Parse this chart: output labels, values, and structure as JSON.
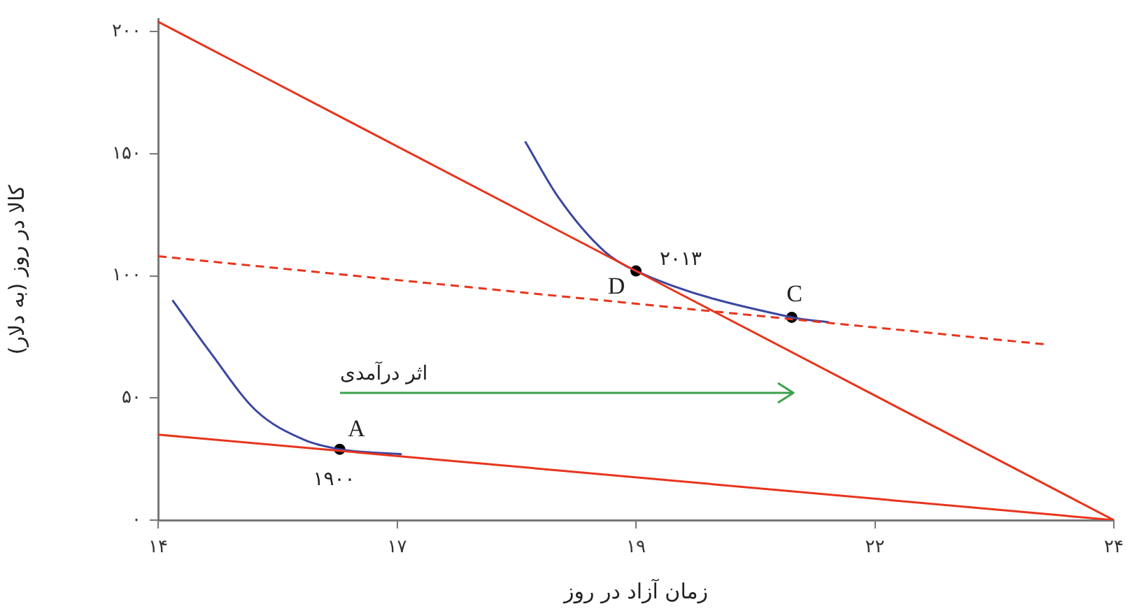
{
  "chart_data": {
    "type": "line",
    "xlabel": "زمان آزاد در روز",
    "ylabel": "کالا در روز (به دلار)",
    "xlim": [
      14,
      24
    ],
    "ylim": [
      0,
      205
    ],
    "xticks": [
      {
        "value": 14,
        "label": "۱۴"
      },
      {
        "value": 16.5,
        "label": "۱۷"
      },
      {
        "value": 19,
        "label": "۱۹"
      },
      {
        "value": 21.5,
        "label": "۲۲"
      },
      {
        "value": 24,
        "label": "۲۴"
      }
    ],
    "yticks": [
      {
        "value": 0,
        "label": "۰"
      },
      {
        "value": 50,
        "label": "۵۰"
      },
      {
        "value": 100,
        "label": "۱۰۰"
      },
      {
        "value": 150,
        "label": "۱۵۰"
      },
      {
        "value": 200,
        "label": "۲۰۰"
      }
    ],
    "grid": false,
    "legend": false,
    "marker": "none",
    "line_style": "solid",
    "series": [
      {
        "color": "#e8341c",
        "x": [
          14,
          24
        ],
        "values": [
          35,
          0
        ]
      },
      {
        "color": "#e8341c",
        "x": [
          14,
          24
        ],
        "values": [
          204,
          0
        ]
      },
      {
        "color": "#e8341c",
        "line_style": "dashed",
        "x": [
          14,
          23.27
        ],
        "values": [
          108,
          72
        ]
      },
      {
        "color": "#3a47a0",
        "x": [
          14.15,
          14.54,
          15.02,
          15.52,
          15.9,
          16.55
        ],
        "values": [
          90,
          69,
          45,
          33,
          29,
          27
        ]
      },
      {
        "color": "#3a47a0",
        "x": [
          17.84,
          18.19,
          18.67,
          19,
          20.63,
          21.02
        ],
        "values": [
          155,
          132,
          110,
          102,
          83,
          81
        ]
      },
      {
        "type": "scatter",
        "color": "#000000",
        "marker": "circle",
        "x": [
          15.9,
          19,
          20.63
        ],
        "values": [
          29,
          102,
          83
        ]
      }
    ],
    "annotations": [
      {
        "text": "A",
        "x": 15.9,
        "y": 29
      },
      {
        "text": "۱۹۰۰",
        "x": 15.9,
        "y": 29
      },
      {
        "text": "D",
        "x": 19,
        "y": 102
      },
      {
        "text": "۲۰۱۳",
        "x": 19,
        "y": 102
      },
      {
        "text": "C",
        "x": 20.63,
        "y": 83
      },
      "اثر درآمدی"
    ]
  }
}
